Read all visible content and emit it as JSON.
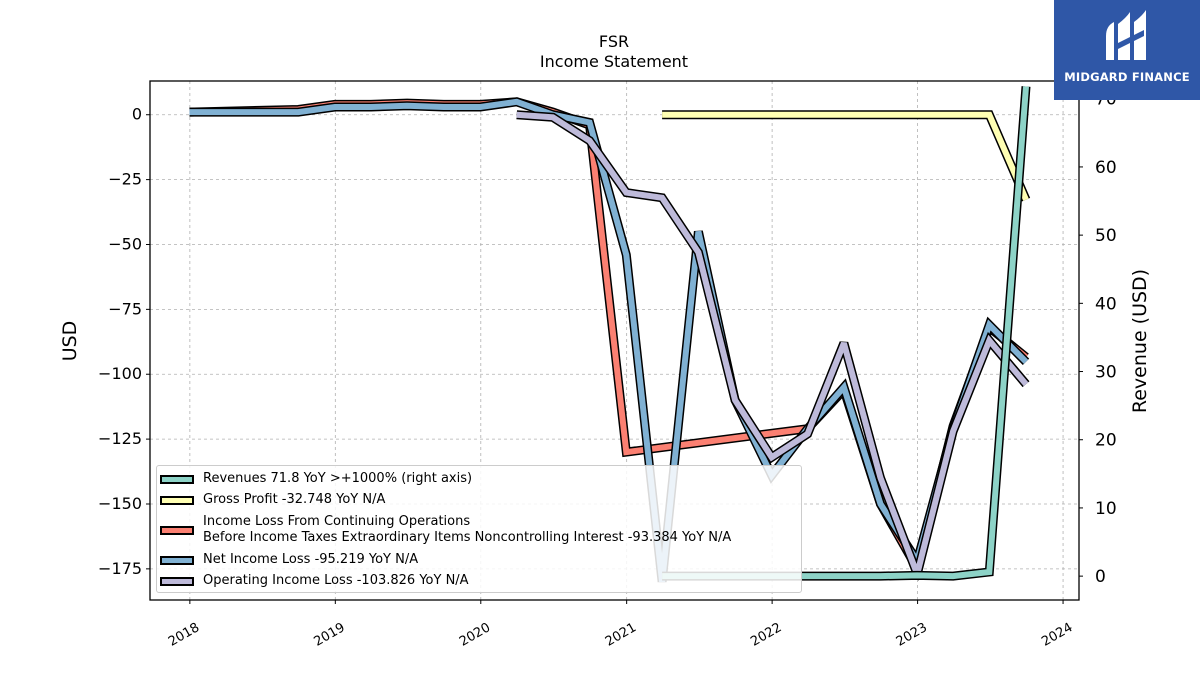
{
  "branding": {
    "logo_text": "MIDGARD FINANCE",
    "logo_icon": "midgard-m-icon",
    "logo_color": "#2f57a7"
  },
  "chart_data": {
    "type": "line",
    "title": "FSR",
    "subtitle": "Income Statement",
    "ylabel": "USD",
    "ylabel_right": "Revenue (USD)",
    "x_ticks": [
      "2018",
      "2019",
      "2020",
      "2021",
      "2022",
      "2023",
      "2024"
    ],
    "ylim": [
      -187,
      13
    ],
    "ylim_right": [
      -3.5,
      72.6
    ],
    "yticks_left": [
      "0",
      "−25",
      "−50",
      "−75",
      "−100",
      "−125",
      "−150",
      "−175"
    ],
    "yticks_right": [
      "0",
      "10",
      "20",
      "30",
      "40",
      "50",
      "60",
      "70"
    ],
    "grid": true,
    "legend_placement": "lower-left",
    "series": [
      {
        "name": "Revenues",
        "legend_label": "Revenues  71.8 YoY >+1000% (right axis)",
        "axis": "right",
        "color": "#8dd3c7",
        "points": [
          [
            "2021-03-31",
            0.0
          ],
          [
            "2021-06-30",
            0.0
          ],
          [
            "2021-09-30",
            0.0
          ],
          [
            "2021-12-31",
            0.0
          ],
          [
            "2022-03-31",
            0.0
          ],
          [
            "2022-06-30",
            0.0
          ],
          [
            "2022-09-30",
            0.0
          ],
          [
            "2022-12-31",
            0.1
          ],
          [
            "2023-03-31",
            0.0
          ],
          [
            "2023-06-30",
            0.6
          ],
          [
            "2023-09-30",
            71.8
          ]
        ]
      },
      {
        "name": "Gross Profit",
        "legend_label": "Gross Profit  -32.748 YoY N/A",
        "axis": "left",
        "color": "#ffffb3",
        "points": [
          [
            "2021-03-31",
            0.0
          ],
          [
            "2021-06-30",
            0.0
          ],
          [
            "2021-09-30",
            0.0
          ],
          [
            "2021-12-31",
            0.0
          ],
          [
            "2022-03-31",
            0.0
          ],
          [
            "2022-06-30",
            0.0
          ],
          [
            "2022-09-30",
            0.0
          ],
          [
            "2022-12-31",
            0.0
          ],
          [
            "2023-03-31",
            0.0
          ],
          [
            "2023-06-30",
            0.0
          ],
          [
            "2023-09-30",
            -32.748
          ]
        ]
      },
      {
        "name": "Income Loss From Continuing Operations Before Income Taxes Extraordinary Items Noncontrolling Interest",
        "legend_label_1": "Income Loss From Continuing Operations",
        "legend_label_2": "Before Income Taxes Extraordinary Items Noncontrolling Interest  -93.384 YoY N/A",
        "axis": "left",
        "color": "#fb8072",
        "points": [
          [
            "2017-12-31",
            1.0
          ],
          [
            "2018-09-30",
            2.0
          ],
          [
            "2018-12-31",
            4.0
          ],
          [
            "2019-03-31",
            4.0
          ],
          [
            "2019-06-30",
            4.5
          ],
          [
            "2019-09-30",
            4.0
          ],
          [
            "2019-12-31",
            4.0
          ],
          [
            "2020-03-31",
            5.0
          ],
          [
            "2020-06-30",
            1.0
          ],
          [
            "2020-09-30",
            -4.0
          ],
          [
            "2020-12-31",
            -130.0
          ],
          [
            "2022-03-31",
            -121.0
          ],
          [
            "2022-06-30",
            -106.0
          ],
          [
            "2022-09-30",
            -150.0
          ],
          [
            "2022-12-31",
            -175.0
          ],
          [
            "2023-03-31",
            -120.0
          ],
          [
            "2023-06-30",
            -82.0
          ],
          [
            "2023-09-30",
            -93.384
          ]
        ]
      },
      {
        "name": "Net Income Loss",
        "legend_label": "Net Income Loss  -95.219 YoY N/A",
        "axis": "left",
        "color": "#80b1d3",
        "points": [
          [
            "2017-12-31",
            1.0
          ],
          [
            "2018-09-30",
            1.0
          ],
          [
            "2018-12-31",
            3.0
          ],
          [
            "2019-03-31",
            3.0
          ],
          [
            "2019-06-30",
            3.5
          ],
          [
            "2019-09-30",
            3.0
          ],
          [
            "2019-12-31",
            3.0
          ],
          [
            "2020-03-31",
            5.0
          ],
          [
            "2020-06-30",
            0.0
          ],
          [
            "2020-09-30",
            -3.0
          ],
          [
            "2020-12-31",
            -54.0
          ],
          [
            "2021-03-31",
            -180.0
          ],
          [
            "2021-06-30",
            -45.0
          ],
          [
            "2021-09-30",
            -110.0
          ],
          [
            "2021-12-31",
            -139.0
          ],
          [
            "2022-03-31",
            -121.0
          ],
          [
            "2022-06-30",
            -105.0
          ],
          [
            "2022-09-30",
            -150.0
          ],
          [
            "2022-12-31",
            -172.0
          ],
          [
            "2023-03-31",
            -121.0
          ],
          [
            "2023-06-30",
            -81.0
          ],
          [
            "2023-09-30",
            -95.219
          ]
        ]
      },
      {
        "name": "Operating Income Loss",
        "legend_label": "Operating Income Loss  -103.826 YoY N/A",
        "axis": "left",
        "color": "#bebada",
        "points": [
          [
            "2020-03-31",
            0.0
          ],
          [
            "2020-06-30",
            -1.0
          ],
          [
            "2020-09-30",
            -10.0
          ],
          [
            "2020-12-31",
            -30.0
          ],
          [
            "2021-03-31",
            -32.0
          ],
          [
            "2021-06-30",
            -53.0
          ],
          [
            "2021-09-30",
            -110.0
          ],
          [
            "2021-12-31",
            -132.0
          ],
          [
            "2022-03-31",
            -123.0
          ],
          [
            "2022-06-30",
            -88.0
          ],
          [
            "2022-09-30",
            -140.0
          ],
          [
            "2022-12-31",
            -177.0
          ],
          [
            "2023-03-31",
            -122.0
          ],
          [
            "2023-06-30",
            -87.0
          ],
          [
            "2023-09-30",
            -103.826
          ]
        ]
      }
    ]
  }
}
